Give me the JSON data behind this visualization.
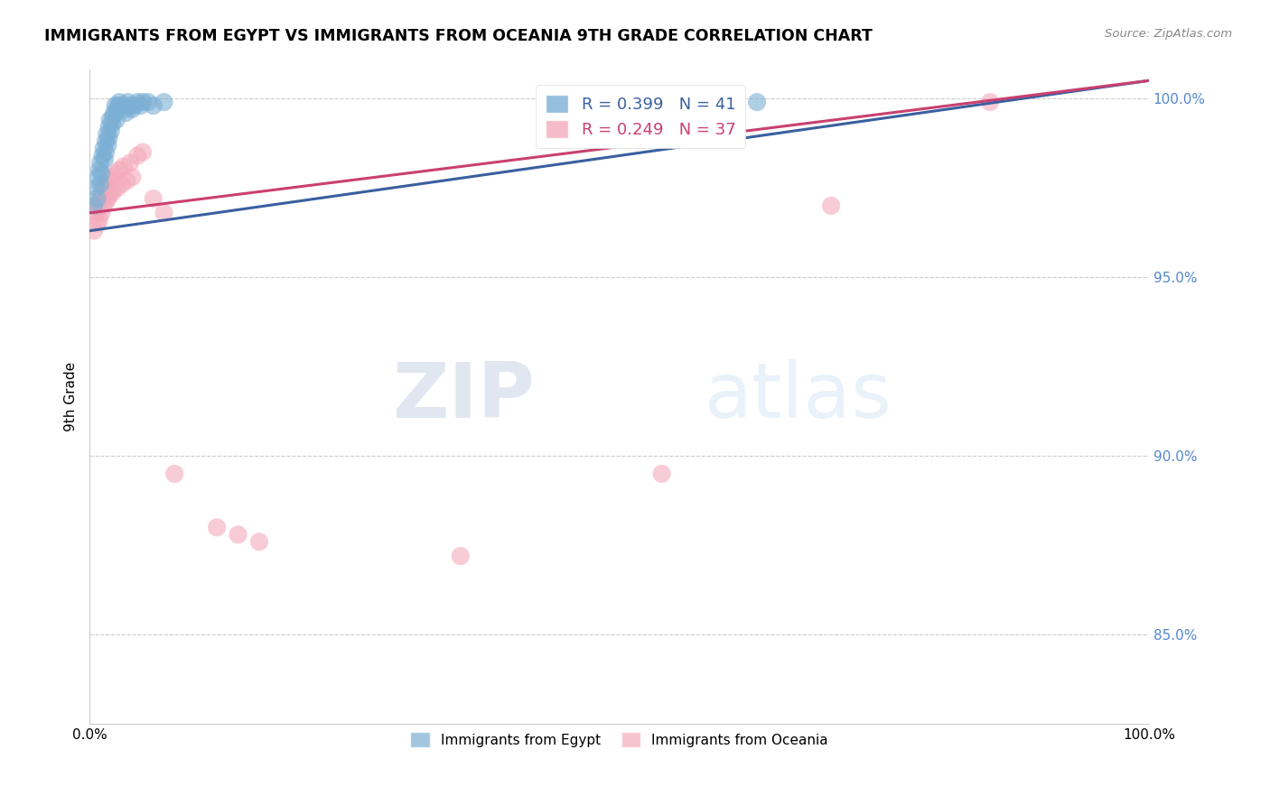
{
  "title": "IMMIGRANTS FROM EGYPT VS IMMIGRANTS FROM OCEANIA 9TH GRADE CORRELATION CHART",
  "source": "Source: ZipAtlas.com",
  "ylabel": "9th Grade",
  "legend_labels": [
    "Immigrants from Egypt",
    "Immigrants from Oceania"
  ],
  "r_egypt": 0.399,
  "n_egypt": 41,
  "r_oceania": 0.249,
  "n_oceania": 37,
  "blue_color": "#7BAFD4",
  "pink_color": "#F4AABB",
  "blue_line_color": "#3A5FA0",
  "pink_line_color": "#C94070",
  "right_axis_color": "#5588CC",
  "grid_color": "#CCCCCC",
  "watermark_zip": "ZIP",
  "watermark_atlas": "atlas",
  "xlim": [
    0.0,
    1.0
  ],
  "ylim": [
    0.825,
    1.008
  ],
  "yticks": [
    0.85,
    0.9,
    0.95,
    1.0
  ],
  "ytick_labels": [
    "85.0%",
    "90.0%",
    "95.0%",
    "100.0%"
  ],
  "xtick_labels": [
    "0.0%",
    "100.0%"
  ],
  "egypt_x": [
    0.004,
    0.006,
    0.007,
    0.008,
    0.009,
    0.01,
    0.01,
    0.011,
    0.012,
    0.013,
    0.014,
    0.015,
    0.015,
    0.016,
    0.017,
    0.018,
    0.018,
    0.019,
    0.02,
    0.021,
    0.022,
    0.023,
    0.024,
    0.025,
    0.026,
    0.027,
    0.028,
    0.03,
    0.032,
    0.034,
    0.036,
    0.038,
    0.04,
    0.042,
    0.045,
    0.048,
    0.05,
    0.055,
    0.06,
    0.07,
    0.63
  ],
  "egypt_y": [
    0.97,
    0.975,
    0.972,
    0.978,
    0.98,
    0.976,
    0.982,
    0.979,
    0.984,
    0.986,
    0.983,
    0.988,
    0.985,
    0.99,
    0.987,
    0.992,
    0.989,
    0.994,
    0.991,
    0.993,
    0.995,
    0.996,
    0.998,
    0.994,
    0.997,
    0.998,
    0.999,
    0.998,
    0.997,
    0.996,
    0.999,
    0.998,
    0.997,
    0.998,
    0.999,
    0.998,
    0.999,
    0.999,
    0.998,
    0.999,
    0.999
  ],
  "oceania_x": [
    0.004,
    0.006,
    0.007,
    0.008,
    0.009,
    0.01,
    0.011,
    0.012,
    0.013,
    0.014,
    0.015,
    0.016,
    0.017,
    0.018,
    0.019,
    0.02,
    0.022,
    0.024,
    0.026,
    0.028,
    0.03,
    0.032,
    0.035,
    0.038,
    0.04,
    0.045,
    0.05,
    0.06,
    0.07,
    0.08,
    0.12,
    0.14,
    0.16,
    0.35,
    0.54,
    0.7,
    0.85
  ],
  "oceania_y": [
    0.963,
    0.968,
    0.965,
    0.97,
    0.966,
    0.972,
    0.968,
    0.974,
    0.97,
    0.975,
    0.971,
    0.976,
    0.972,
    0.977,
    0.973,
    0.978,
    0.974,
    0.979,
    0.975,
    0.98,
    0.976,
    0.981,
    0.977,
    0.982,
    0.978,
    0.984,
    0.985,
    0.972,
    0.968,
    0.895,
    0.88,
    0.878,
    0.876,
    0.872,
    0.895,
    0.97,
    0.999
  ],
  "blue_line_x": [
    0.0,
    1.0
  ],
  "blue_line_y": [
    0.963,
    1.005
  ],
  "pink_line_x": [
    0.0,
    1.0
  ],
  "pink_line_y": [
    0.968,
    1.005
  ]
}
